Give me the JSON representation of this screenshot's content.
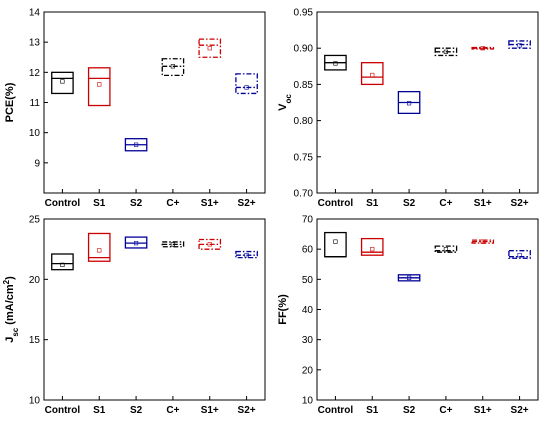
{
  "chart_data": [
    {
      "type": "box",
      "id": "pce",
      "ylabel": "PCE(%)",
      "ylim": [
        8,
        14
      ],
      "yticks": [
        9,
        10,
        11,
        12,
        13,
        14
      ],
      "yticklabels": [
        "9",
        "10",
        "11",
        "12",
        "13",
        "14"
      ],
      "categories": [
        "Control",
        "S1",
        "S2",
        "C+",
        "S1+",
        "S2+"
      ],
      "boxes": [
        {
          "q1": 11.3,
          "median": 11.8,
          "q3": 12.0,
          "mean": 11.7,
          "color": "#000000",
          "dash": "solid"
        },
        {
          "q1": 10.9,
          "median": 11.8,
          "q3": 12.15,
          "mean": 11.6,
          "color": "#cc0000",
          "dash": "solid"
        },
        {
          "q1": 9.4,
          "median": 9.6,
          "q3": 9.8,
          "mean": 9.6,
          "color": "#000099",
          "dash": "solid"
        },
        {
          "q1": 11.9,
          "median": 12.2,
          "q3": 12.45,
          "mean": 12.2,
          "color": "#000000",
          "dash": "dashdot"
        },
        {
          "q1": 12.5,
          "median": 12.9,
          "q3": 13.1,
          "mean": 12.8,
          "color": "#cc0000",
          "dash": "dashdot"
        },
        {
          "q1": 11.3,
          "median": 11.5,
          "q3": 11.95,
          "mean": 11.5,
          "color": "#000099",
          "dash": "dashdot"
        }
      ]
    },
    {
      "type": "box",
      "id": "voc",
      "ylabel": "V",
      "ylabel_sub": "oc",
      "ylim": [
        0.7,
        0.95
      ],
      "yticks": [
        0.7,
        0.75,
        0.8,
        0.85,
        0.9,
        0.95
      ],
      "yticklabels": [
        "0.70",
        "0.75",
        "0.80",
        "0.85",
        "0.90",
        "0.95"
      ],
      "categories": [
        "Control",
        "S1",
        "S2",
        "C+",
        "S1+",
        "S2+"
      ],
      "boxes": [
        {
          "q1": 0.87,
          "median": 0.88,
          "q3": 0.89,
          "mean": 0.879,
          "color": "#000000",
          "dash": "solid"
        },
        {
          "q1": 0.85,
          "median": 0.86,
          "q3": 0.88,
          "mean": 0.863,
          "color": "#cc0000",
          "dash": "solid"
        },
        {
          "q1": 0.81,
          "median": 0.825,
          "q3": 0.84,
          "mean": 0.824,
          "color": "#000099",
          "dash": "solid"
        },
        {
          "q1": 0.89,
          "median": 0.895,
          "q3": 0.9,
          "mean": 0.895,
          "color": "#000000",
          "dash": "dashdot"
        },
        {
          "q1": 0.899,
          "median": 0.9,
          "q3": 0.901,
          "mean": 0.9,
          "color": "#cc0000",
          "dash": "dashdot"
        },
        {
          "q1": 0.9,
          "median": 0.905,
          "q3": 0.91,
          "mean": 0.904,
          "color": "#000099",
          "dash": "dashdot"
        }
      ]
    },
    {
      "type": "box",
      "id": "jsc",
      "ylabel": "J",
      "ylabel_sub": "sc",
      "ylabel_rest": " (mA/cm",
      "ylabel_sup": "2",
      "ylabel_end": ")",
      "ylim": [
        10,
        25
      ],
      "yticks": [
        10,
        15,
        20,
        25
      ],
      "yticklabels": [
        "10",
        "15",
        "20",
        "25"
      ],
      "categories": [
        "Control",
        "S1",
        "S2",
        "C+",
        "S1+",
        "S2+"
      ],
      "boxes": [
        {
          "q1": 20.8,
          "median": 21.3,
          "q3": 22.1,
          "mean": 21.2,
          "color": "#000000",
          "dash": "solid"
        },
        {
          "q1": 21.5,
          "median": 21.8,
          "q3": 23.8,
          "mean": 22.4,
          "color": "#cc0000",
          "dash": "solid"
        },
        {
          "q1": 22.6,
          "median": 23.0,
          "q3": 23.5,
          "mean": 23.0,
          "color": "#000099",
          "dash": "solid"
        },
        {
          "q1": 22.7,
          "median": 22.9,
          "q3": 23.1,
          "mean": 22.9,
          "color": "#000000",
          "dash": "dashdot"
        },
        {
          "q1": 22.5,
          "median": 22.9,
          "q3": 23.3,
          "mean": 22.9,
          "color": "#cc0000",
          "dash": "dashdot"
        },
        {
          "q1": 21.8,
          "median": 22.0,
          "q3": 22.3,
          "mean": 22.0,
          "color": "#000099",
          "dash": "dashdot"
        }
      ]
    },
    {
      "type": "box",
      "id": "ff",
      "ylabel": "FF(%)",
      "ylim": [
        10,
        70
      ],
      "yticks": [
        10,
        20,
        30,
        40,
        50,
        60,
        70
      ],
      "yticklabels": [
        "10",
        "20",
        "30",
        "40",
        "50",
        "60",
        "70"
      ],
      "categories": [
        "Control",
        "S1",
        "S2",
        "C+",
        "S1+",
        "S2+"
      ],
      "boxes": [
        {
          "q1": 57.5,
          "median": 57.5,
          "q3": 65.5,
          "mean": 62.5,
          "color": "#000000",
          "dash": "solid"
        },
        {
          "q1": 58.0,
          "median": 59.0,
          "q3": 63.5,
          "mean": 60.0,
          "color": "#cc0000",
          "dash": "solid"
        },
        {
          "q1": 49.5,
          "median": 50.5,
          "q3": 51.5,
          "mean": 50.5,
          "color": "#000099",
          "dash": "solid"
        },
        {
          "q1": 59.0,
          "median": 59.5,
          "q3": 61.0,
          "mean": 60.0,
          "color": "#000000",
          "dash": "dashdot"
        },
        {
          "q1": 62.0,
          "median": 62.5,
          "q3": 63.0,
          "mean": 62.5,
          "color": "#cc0000",
          "dash": "dashdot"
        },
        {
          "q1": 57.0,
          "median": 57.5,
          "q3": 59.5,
          "mean": 58.0,
          "color": "#000099",
          "dash": "dashdot"
        }
      ]
    }
  ]
}
